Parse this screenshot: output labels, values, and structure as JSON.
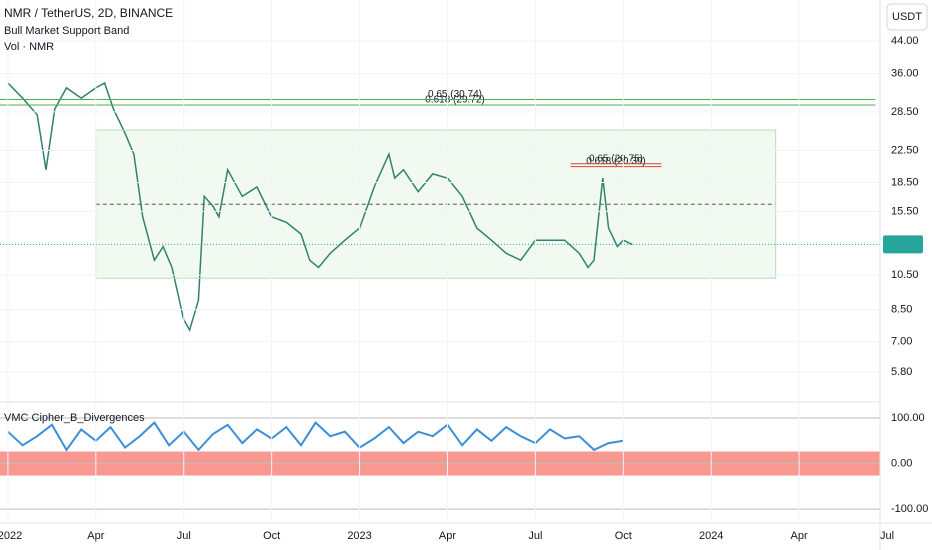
{
  "header": {
    "symbol": "NMR / TetherUS, 2D, BINANCE",
    "indicators": [
      "Bull Market Support Band",
      "Vol · NMR"
    ],
    "currency": "USDT"
  },
  "chart_data": [
    {
      "type": "line",
      "log": true,
      "color": "#2f7f73",
      "x": [
        0,
        0.5,
        1,
        1.3,
        1.6,
        2,
        2.5,
        3,
        3.3,
        3.6,
        4,
        4.3,
        4.6,
        5,
        5.3,
        5.6,
        6,
        6.2,
        6.5,
        6.7,
        7,
        7.2,
        7.5,
        8,
        8.5,
        9,
        9.5,
        10,
        10.3,
        10.6,
        11,
        11.5,
        12,
        12.5,
        13,
        13.2,
        13.5,
        14,
        14.5,
        15,
        15.5,
        16,
        16.5,
        17,
        17.5,
        18,
        18.5,
        19,
        19.5,
        19.8,
        20,
        20.3,
        20.5,
        20.8,
        21,
        21.3
      ],
      "values": [
        34,
        31,
        28,
        20,
        29,
        33,
        31,
        33,
        34,
        29,
        25,
        22,
        15,
        11.5,
        12.5,
        11,
        8,
        7.5,
        9,
        17,
        16,
        15,
        20,
        17,
        18,
        15,
        14.5,
        13.5,
        11.5,
        11,
        12,
        13,
        14,
        18,
        22,
        19,
        20,
        17.5,
        19.5,
        19,
        17,
        14,
        13,
        12,
        11.5,
        13,
        13,
        13,
        12,
        11,
        11.5,
        19,
        14,
        12.5,
        13,
        12.67
      ],
      "xlim": [
        -0.27,
        29.76
      ],
      "xticks": [
        {
          "value": 0,
          "label": "2022"
        },
        {
          "value": 3,
          "label": "Apr"
        },
        {
          "value": 6,
          "label": "Jul"
        },
        {
          "value": 9,
          "label": "Oct"
        },
        {
          "value": 12,
          "label": "2023"
        },
        {
          "value": 15,
          "label": "Apr"
        },
        {
          "value": 18,
          "label": "Jul"
        },
        {
          "value": 21,
          "label": "Oct"
        },
        {
          "value": 24,
          "label": "2024"
        },
        {
          "value": 27,
          "label": "Apr"
        },
        {
          "value": 30,
          "label": "Jul"
        }
      ],
      "ylim": [
        4.89,
        56.5
      ],
      "yticks": [
        {
          "value": 44,
          "label": "44.00"
        },
        {
          "value": 36,
          "label": "36.00"
        },
        {
          "value": 28.5,
          "label": "28.50"
        },
        {
          "value": 22.5,
          "label": "22.50"
        },
        {
          "value": 18.5,
          "label": "18.50"
        },
        {
          "value": 15.5,
          "label": "15.50"
        },
        {
          "value": 10.5,
          "label": "10.50"
        },
        {
          "value": 8.5,
          "label": "8.50"
        },
        {
          "value": 7,
          "label": "7.00"
        },
        {
          "value": 5.8,
          "label": "5.80"
        }
      ],
      "last": 12.67,
      "levels": [
        {
          "value": 30.74,
          "label": "0.65 (30.74)",
          "color": "#4caf50",
          "from": -0.27,
          "to": 29.6
        },
        {
          "value": 29.72,
          "label": "0.618 (29.72)",
          "color": "#4caf50",
          "from": -0.27,
          "to": 29.6
        },
        {
          "value": 20.75,
          "label": "0.65 (20.75)",
          "color": "#e53935",
          "from": 19.2,
          "to": 22.3
        },
        {
          "value": 20.39,
          "label": "0.618 (20.39)",
          "color": "#e53935",
          "from": 19.2,
          "to": 22.3
        }
      ],
      "range": {
        "top": 25.5,
        "bottom": 10.3,
        "mid": 16.2,
        "from": 3.0,
        "to": 26.2
      }
    },
    {
      "type": "oscillator",
      "title": "VMC Cipher_B_Divergences",
      "color": "#3c8fd6",
      "x": [
        0,
        0.5,
        1,
        1.5,
        2,
        2.5,
        3,
        3.5,
        4,
        4.5,
        5,
        5.5,
        6,
        6.5,
        7,
        7.5,
        8,
        8.5,
        9,
        9.5,
        10,
        10.5,
        11,
        11.5,
        12,
        12.5,
        13,
        13.5,
        14,
        14.5,
        15,
        15.5,
        16,
        16.5,
        17,
        17.5,
        18,
        18.5,
        19,
        19.5,
        20,
        20.5,
        21
      ],
      "values": [
        70,
        40,
        60,
        85,
        30,
        75,
        50,
        80,
        35,
        60,
        90,
        40,
        70,
        30,
        65,
        85,
        45,
        75,
        55,
        80,
        40,
        90,
        60,
        70,
        35,
        55,
        80,
        45,
        70,
        60,
        85,
        40,
        75,
        50,
        80,
        60,
        45,
        75,
        55,
        60,
        30,
        45,
        50
      ],
      "ylim": [
        -124,
        128.6
      ],
      "yticks": [
        {
          "value": 100,
          "label": "100.00"
        },
        {
          "value": 0,
          "label": "0.00"
        },
        {
          "value": -100,
          "label": "-100.00"
        }
      ]
    }
  ]
}
